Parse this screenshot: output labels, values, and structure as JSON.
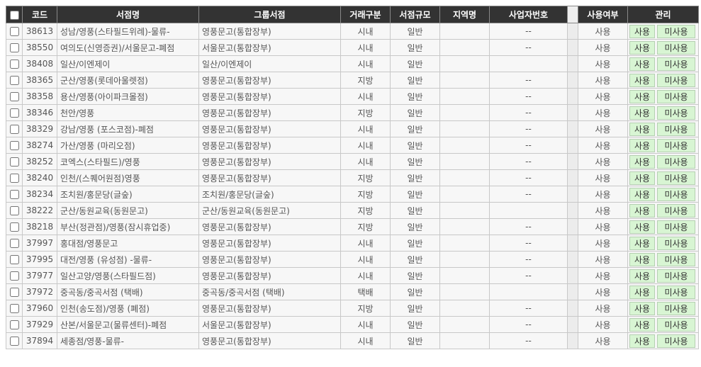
{
  "header": {
    "code": "코드",
    "name": "서점명",
    "group": "그룹서점",
    "trade": "거래구분",
    "size": "서점규모",
    "region": "지역명",
    "biz": "사업자번호",
    "status": "사용여부",
    "manage": "관리"
  },
  "buttons": {
    "use": "사용",
    "unuse": "미사용"
  },
  "rows": [
    {
      "code": "38613",
      "name": "성남/영풍(스타필드위례)-물류-",
      "group": "영풍문고(통합장부)",
      "trade": "시내",
      "size": "일반",
      "biz": "--",
      "status": "사용"
    },
    {
      "code": "38550",
      "name": "여의도(신영증권)/서울문고-폐점",
      "group": "서울문고(통합장부)",
      "trade": "시내",
      "size": "일반",
      "biz": "--",
      "status": "사용"
    },
    {
      "code": "38408",
      "name": "일산/이엔제이",
      "group": "일산/이엔제이",
      "trade": "시내",
      "size": "일반",
      "status": "사용"
    },
    {
      "code": "38365",
      "name": "군산/영풍(롯데아울렛점)",
      "group": "영풍문고(통합장부)",
      "trade": "지방",
      "size": "일반",
      "biz": "--",
      "status": "사용"
    },
    {
      "code": "38358",
      "name": "용산/영풍(아이파크몰점)",
      "group": "영풍문고(통합장부)",
      "trade": "시내",
      "size": "일반",
      "biz": "--",
      "status": "사용"
    },
    {
      "code": "38346",
      "name": "천안/영풍",
      "group": "영풍문고(통합장부)",
      "trade": "지방",
      "size": "일반",
      "biz": "--",
      "status": "사용"
    },
    {
      "code": "38329",
      "name": "강남/영풍 (포스코점)-폐점",
      "group": "영풍문고(통합장부)",
      "trade": "시내",
      "size": "일반",
      "biz": "--",
      "status": "사용"
    },
    {
      "code": "38274",
      "name": "가산/영풍 (마리오점)",
      "group": "영풍문고(통합장부)",
      "trade": "시내",
      "size": "일반",
      "biz": "--",
      "status": "사용"
    },
    {
      "code": "38252",
      "name": "코엑스(스타필드)/영풍",
      "group": "영풍문고(통합장부)",
      "trade": "시내",
      "size": "일반",
      "biz": "--",
      "status": "사용"
    },
    {
      "code": "38240",
      "name": "인천/(스퀘어원점)영풍",
      "group": "영풍문고(통합장부)",
      "trade": "지방",
      "size": "일반",
      "biz": "--",
      "status": "사용"
    },
    {
      "code": "38234",
      "name": "조치원/홍문당(글숲)",
      "group": "조치원/홍문당(글숲)",
      "trade": "지방",
      "size": "일반",
      "biz": "--",
      "status": "사용"
    },
    {
      "code": "38222",
      "name": "군산/동원교육(동원문고)",
      "group": "군산/동원교육(동원문고)",
      "trade": "지방",
      "size": "일반",
      "status": "사용"
    },
    {
      "code": "38218",
      "name": "부산(정관점)/영풍(잠시휴업중)",
      "group": "영풍문고(통합장부)",
      "trade": "지방",
      "size": "일반",
      "biz": "--",
      "status": "사용"
    },
    {
      "code": "37997",
      "name": "홍대점/영풍문고",
      "group": "영풍문고(통합장부)",
      "trade": "시내",
      "size": "일반",
      "biz": "--",
      "status": "사용"
    },
    {
      "code": "37995",
      "name": "대전/영풍 (유성점) -물류-",
      "group": "영풍문고(통합장부)",
      "trade": "시내",
      "size": "일반",
      "biz": "--",
      "status": "사용"
    },
    {
      "code": "37977",
      "name": "일산고양/영풍(스타필드점)",
      "group": "영풍문고(통합장부)",
      "trade": "시내",
      "size": "일반",
      "biz": "--",
      "status": "사용"
    },
    {
      "code": "37972",
      "name": "중곡동/중곡서점 (택배)",
      "group": "중곡동/중곡서점 (택배)",
      "trade": "택배",
      "size": "일반",
      "status": "사용"
    },
    {
      "code": "37960",
      "name": "인천(송도점)/영풍 (폐점)",
      "group": "영풍문고(통합장부)",
      "trade": "지방",
      "size": "일반",
      "biz": "--",
      "status": "사용"
    },
    {
      "code": "37929",
      "name": "산본/서울문고(물류센터)-폐점",
      "group": "서울문고(통합장부)",
      "trade": "시내",
      "size": "일반",
      "biz": "--",
      "status": "사용"
    },
    {
      "code": "37894",
      "name": "세종점/영풍-물류-",
      "group": "영풍문고(통합장부)",
      "trade": "시내",
      "size": "일반",
      "biz": "--",
      "status": "사용"
    }
  ]
}
